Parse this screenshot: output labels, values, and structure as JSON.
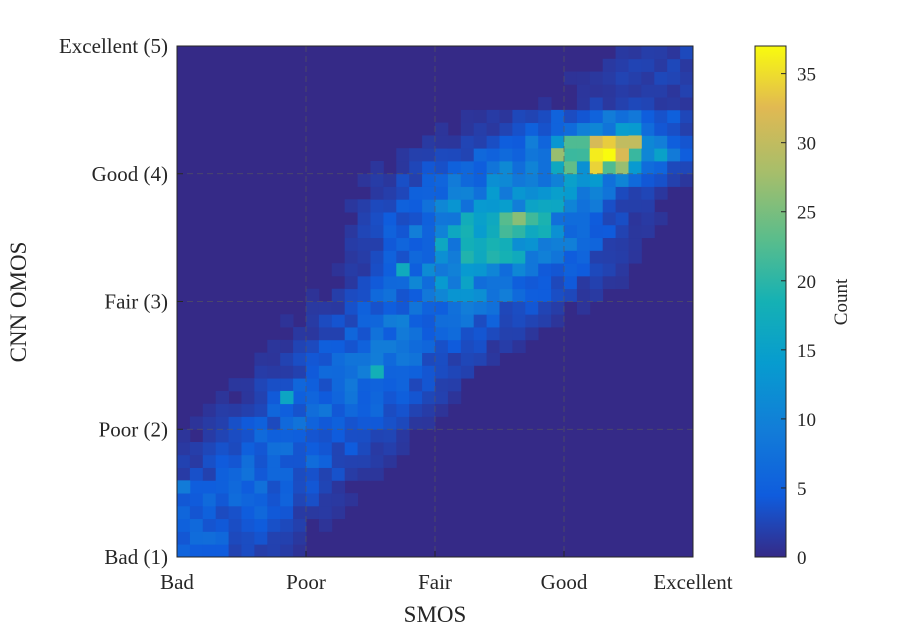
{
  "chart_data": {
    "type": "heatmap",
    "title": "",
    "xlabel": "SMOS",
    "ylabel": "CNN OMOS",
    "x_ticks": [
      "Bad",
      "Poor",
      "Fair",
      "Good",
      "Excellent"
    ],
    "y_ticks": [
      "Bad (1)",
      "Poor (2)",
      "Fair (3)",
      "Good (4)",
      "Excellent (5)"
    ],
    "xlim": [
      1,
      5
    ],
    "ylim": [
      1,
      5
    ],
    "grid": true,
    "bins": 40,
    "colorbar": {
      "label": "Count",
      "ticks": [
        "0",
        "5",
        "10",
        "15",
        "20",
        "25",
        "30",
        "35"
      ],
      "range": [
        0,
        37
      ]
    },
    "hotspots": [
      {
        "x": 4.25,
        "y": 4.12,
        "count": 36
      },
      {
        "x": 4.4,
        "y": 4.18,
        "count": 32
      },
      {
        "x": 4.6,
        "y": 4.2,
        "count": 30
      },
      {
        "x": 3.95,
        "y": 4.15,
        "count": 27
      },
      {
        "x": 3.6,
        "y": 3.67,
        "count": 26
      },
      {
        "x": 3.25,
        "y": 3.45,
        "count": 18
      },
      {
        "x": 2.7,
        "y": 3.22,
        "count": 17
      },
      {
        "x": 2.5,
        "y": 2.48,
        "count": 18
      },
      {
        "x": 1.85,
        "y": 2.3,
        "count": 16
      },
      {
        "x": 1.05,
        "y": 1.5,
        "count": 9
      }
    ]
  }
}
